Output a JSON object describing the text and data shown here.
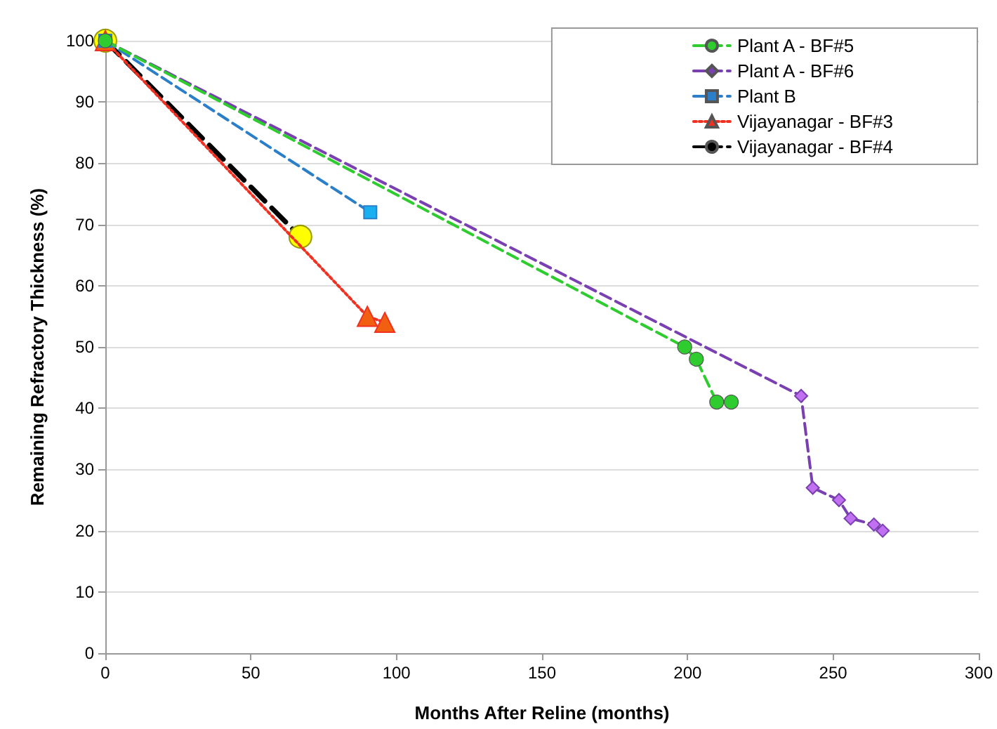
{
  "chart_data": {
    "type": "line",
    "xlabel": "Months After Reline (months)",
    "ylabel": "Remaining Refractory Thickness (%)",
    "xlim": [
      0,
      300
    ],
    "xticks": [
      0,
      50,
      100,
      150,
      200,
      250,
      300
    ],
    "ylim": [
      0,
      100
    ],
    "yticks": [
      0,
      10,
      20,
      30,
      40,
      50,
      60,
      70,
      80,
      90,
      100
    ],
    "grid": "y",
    "legend": "top right",
    "series": [
      {
        "name": "Plant A - BF#5",
        "color": "#2ecc2e",
        "marker": "circle",
        "line_style": "dashed",
        "x": [
          0,
          199,
          203,
          210,
          215
        ],
        "values": [
          100,
          50,
          48,
          41,
          41
        ]
      },
      {
        "name": "Plant A - BF#6",
        "color": "#7a3fb0",
        "colors": [
          "#c070f0",
          "#c070f0",
          "#c070f0",
          "#c070f0",
          "#c070f0",
          "#c070f0",
          "#c070f0"
        ],
        "marker": "diamond",
        "line_style": "dashed",
        "x": [
          0,
          239,
          243,
          252,
          256,
          264,
          267
        ],
        "values": [
          100,
          42,
          27,
          25,
          22,
          21,
          20
        ]
      },
      {
        "name": "Plant B",
        "color": "#2a7fc8",
        "colors": [
          "#1ab0f0",
          "#1ab0f0"
        ],
        "marker": "square",
        "line_style": "dashed",
        "x": [
          0,
          91
        ],
        "values": [
          100,
          72
        ]
      },
      {
        "name": "Vijayanagar - BF#3",
        "color": "#f03020",
        "colors": [
          "#f06010",
          "#f06010",
          "#f06010"
        ],
        "marker": "triangle",
        "line_style": "dotted",
        "x": [
          0,
          90,
          96
        ],
        "values": [
          100,
          55,
          54
        ]
      },
      {
        "name": "Vijayanagar - BF#4",
        "color": "#000000",
        "colors": [
          "#ffff00",
          "#ffff00"
        ],
        "marker": "circle",
        "line_style": "dashed",
        "x": [
          0,
          67
        ],
        "values": [
          100,
          68
        ]
      }
    ]
  }
}
